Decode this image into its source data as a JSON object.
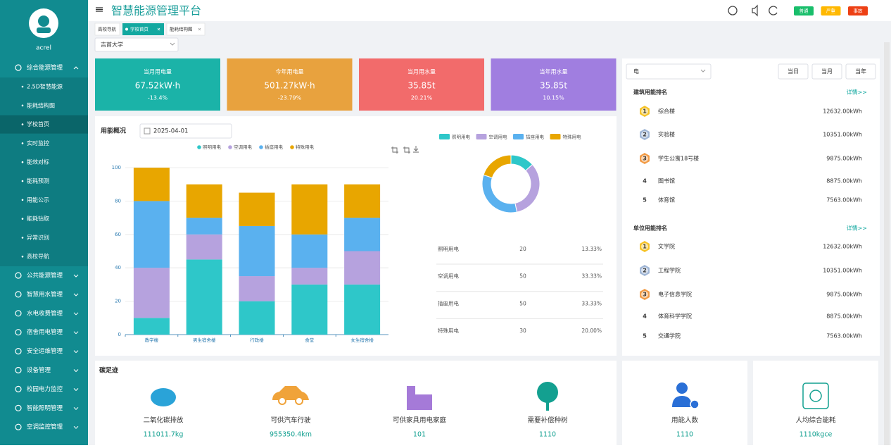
{
  "sidebar": {
    "user": "acrel",
    "groups": [
      "综合能源管理",
      "公共能源管理",
      "智慧用水管理",
      "水电收费管理",
      "宿舍用电管理",
      "安全运维管理",
      "设备管理",
      "校园电力监控",
      "智能照明管理",
      "空调监控管理"
    ],
    "items": [
      "2.5D智慧能源",
      "能耗结构图",
      "学校首页",
      "实时监控",
      "能效对标",
      "能耗预测",
      "用能公示",
      "能耗钻取",
      "异常识别",
      "高校导航"
    ]
  },
  "header": {
    "title": "智慧能源管理平台",
    "alarms": [
      "普通",
      "严重",
      "事故"
    ]
  },
  "tabs": [
    "高校导航",
    "学校首页",
    "能耗结构图"
  ],
  "school": "吉首大学",
  "cards": [
    {
      "title": "当月用电量",
      "value": "67.52kW·h",
      "change": "-13.4%"
    },
    {
      "title": "今年用电量",
      "value": "501.27kW·h",
      "change": "-23.79%"
    },
    {
      "title": "当月用水量",
      "value": "35.85t",
      "change": "20.21%"
    },
    {
      "title": "当年用水量",
      "value": "35.85t",
      "change": "10.15%"
    }
  ],
  "usage": {
    "title": "用能概况",
    "date": "2025-04-01"
  },
  "chart_data": [
    {
      "type": "bar",
      "stacked": true,
      "categories": [
        "教学楼",
        "男生宿舍楼",
        "行政楼",
        "食堂",
        "女生宿舍楼"
      ],
      "series": [
        {
          "name": "照明用电",
          "color": "#2ec7c9",
          "values": [
            10,
            45,
            20,
            30,
            30
          ]
        },
        {
          "name": "空调用电",
          "color": "#b6a2de",
          "values": [
            30,
            15,
            15,
            10,
            20
          ]
        },
        {
          "name": "插座用电",
          "color": "#5ab1ef",
          "values": [
            40,
            10,
            30,
            20,
            20
          ]
        },
        {
          "name": "特殊用电",
          "color": "#e8a600",
          "values": [
            20,
            20,
            20,
            30,
            20
          ]
        }
      ],
      "ylim": [
        0,
        100
      ],
      "yticks": [
        0,
        20,
        40,
        60,
        80,
        100
      ],
      "grid": true
    },
    {
      "type": "pie",
      "donut": true,
      "categories": [
        "照明用电",
        "空调用电",
        "插座用电",
        "特殊用电"
      ],
      "colors": [
        "#2ec7c9",
        "#b6a2de",
        "#5ab1ef",
        "#e8a600"
      ],
      "values": [
        20,
        50,
        50,
        30
      ],
      "shares": [
        "13.33%",
        "33.33%",
        "33.33%",
        "20.00%"
      ]
    }
  ],
  "ranking": {
    "filter": "电",
    "periods": [
      "当日",
      "当月",
      "当年"
    ],
    "sections": [
      {
        "title": "建筑用能排名",
        "more": "详情>>",
        "rows": [
          {
            "rank": "1",
            "name": "综合楼",
            "value": "12632.00kWh"
          },
          {
            "rank": "2",
            "name": "实验楼",
            "value": "10351.00kWh"
          },
          {
            "rank": "3",
            "name": "学生公寓18号楼",
            "value": "9875.00kWh"
          },
          {
            "rank": "4",
            "name": "图书馆",
            "value": "8875.00kWh"
          },
          {
            "rank": "5",
            "name": "体育馆",
            "value": "7563.00kWh"
          }
        ]
      },
      {
        "title": "单位用能排名",
        "more": "详情>>",
        "rows": [
          {
            "rank": "1",
            "name": "文学院",
            "value": "12632.00kWh"
          },
          {
            "rank": "2",
            "name": "工程学院",
            "value": "10351.00kWh"
          },
          {
            "rank": "3",
            "name": "电子信息学院",
            "value": "9875.00kWh"
          },
          {
            "rank": "4",
            "name": "体育科学学院",
            "value": "8875.00kWh"
          },
          {
            "rank": "5",
            "name": "交通学院",
            "value": "7563.00kWh"
          }
        ]
      }
    ]
  },
  "carbon": {
    "title": "碳足迹",
    "items": [
      {
        "label": "二氧化碳排放",
        "value": "111011.7kg"
      },
      {
        "label": "可供汽车行驶",
        "value": "955350.4km"
      },
      {
        "label": "可供家具用电家庭",
        "value": "101"
      },
      {
        "label": "需要补偿种树",
        "value": "1110"
      }
    ]
  },
  "stats": [
    {
      "label": "用能人数",
      "value": "1110"
    },
    {
      "label": "人均综合能耗",
      "value": "1110kgce"
    }
  ]
}
